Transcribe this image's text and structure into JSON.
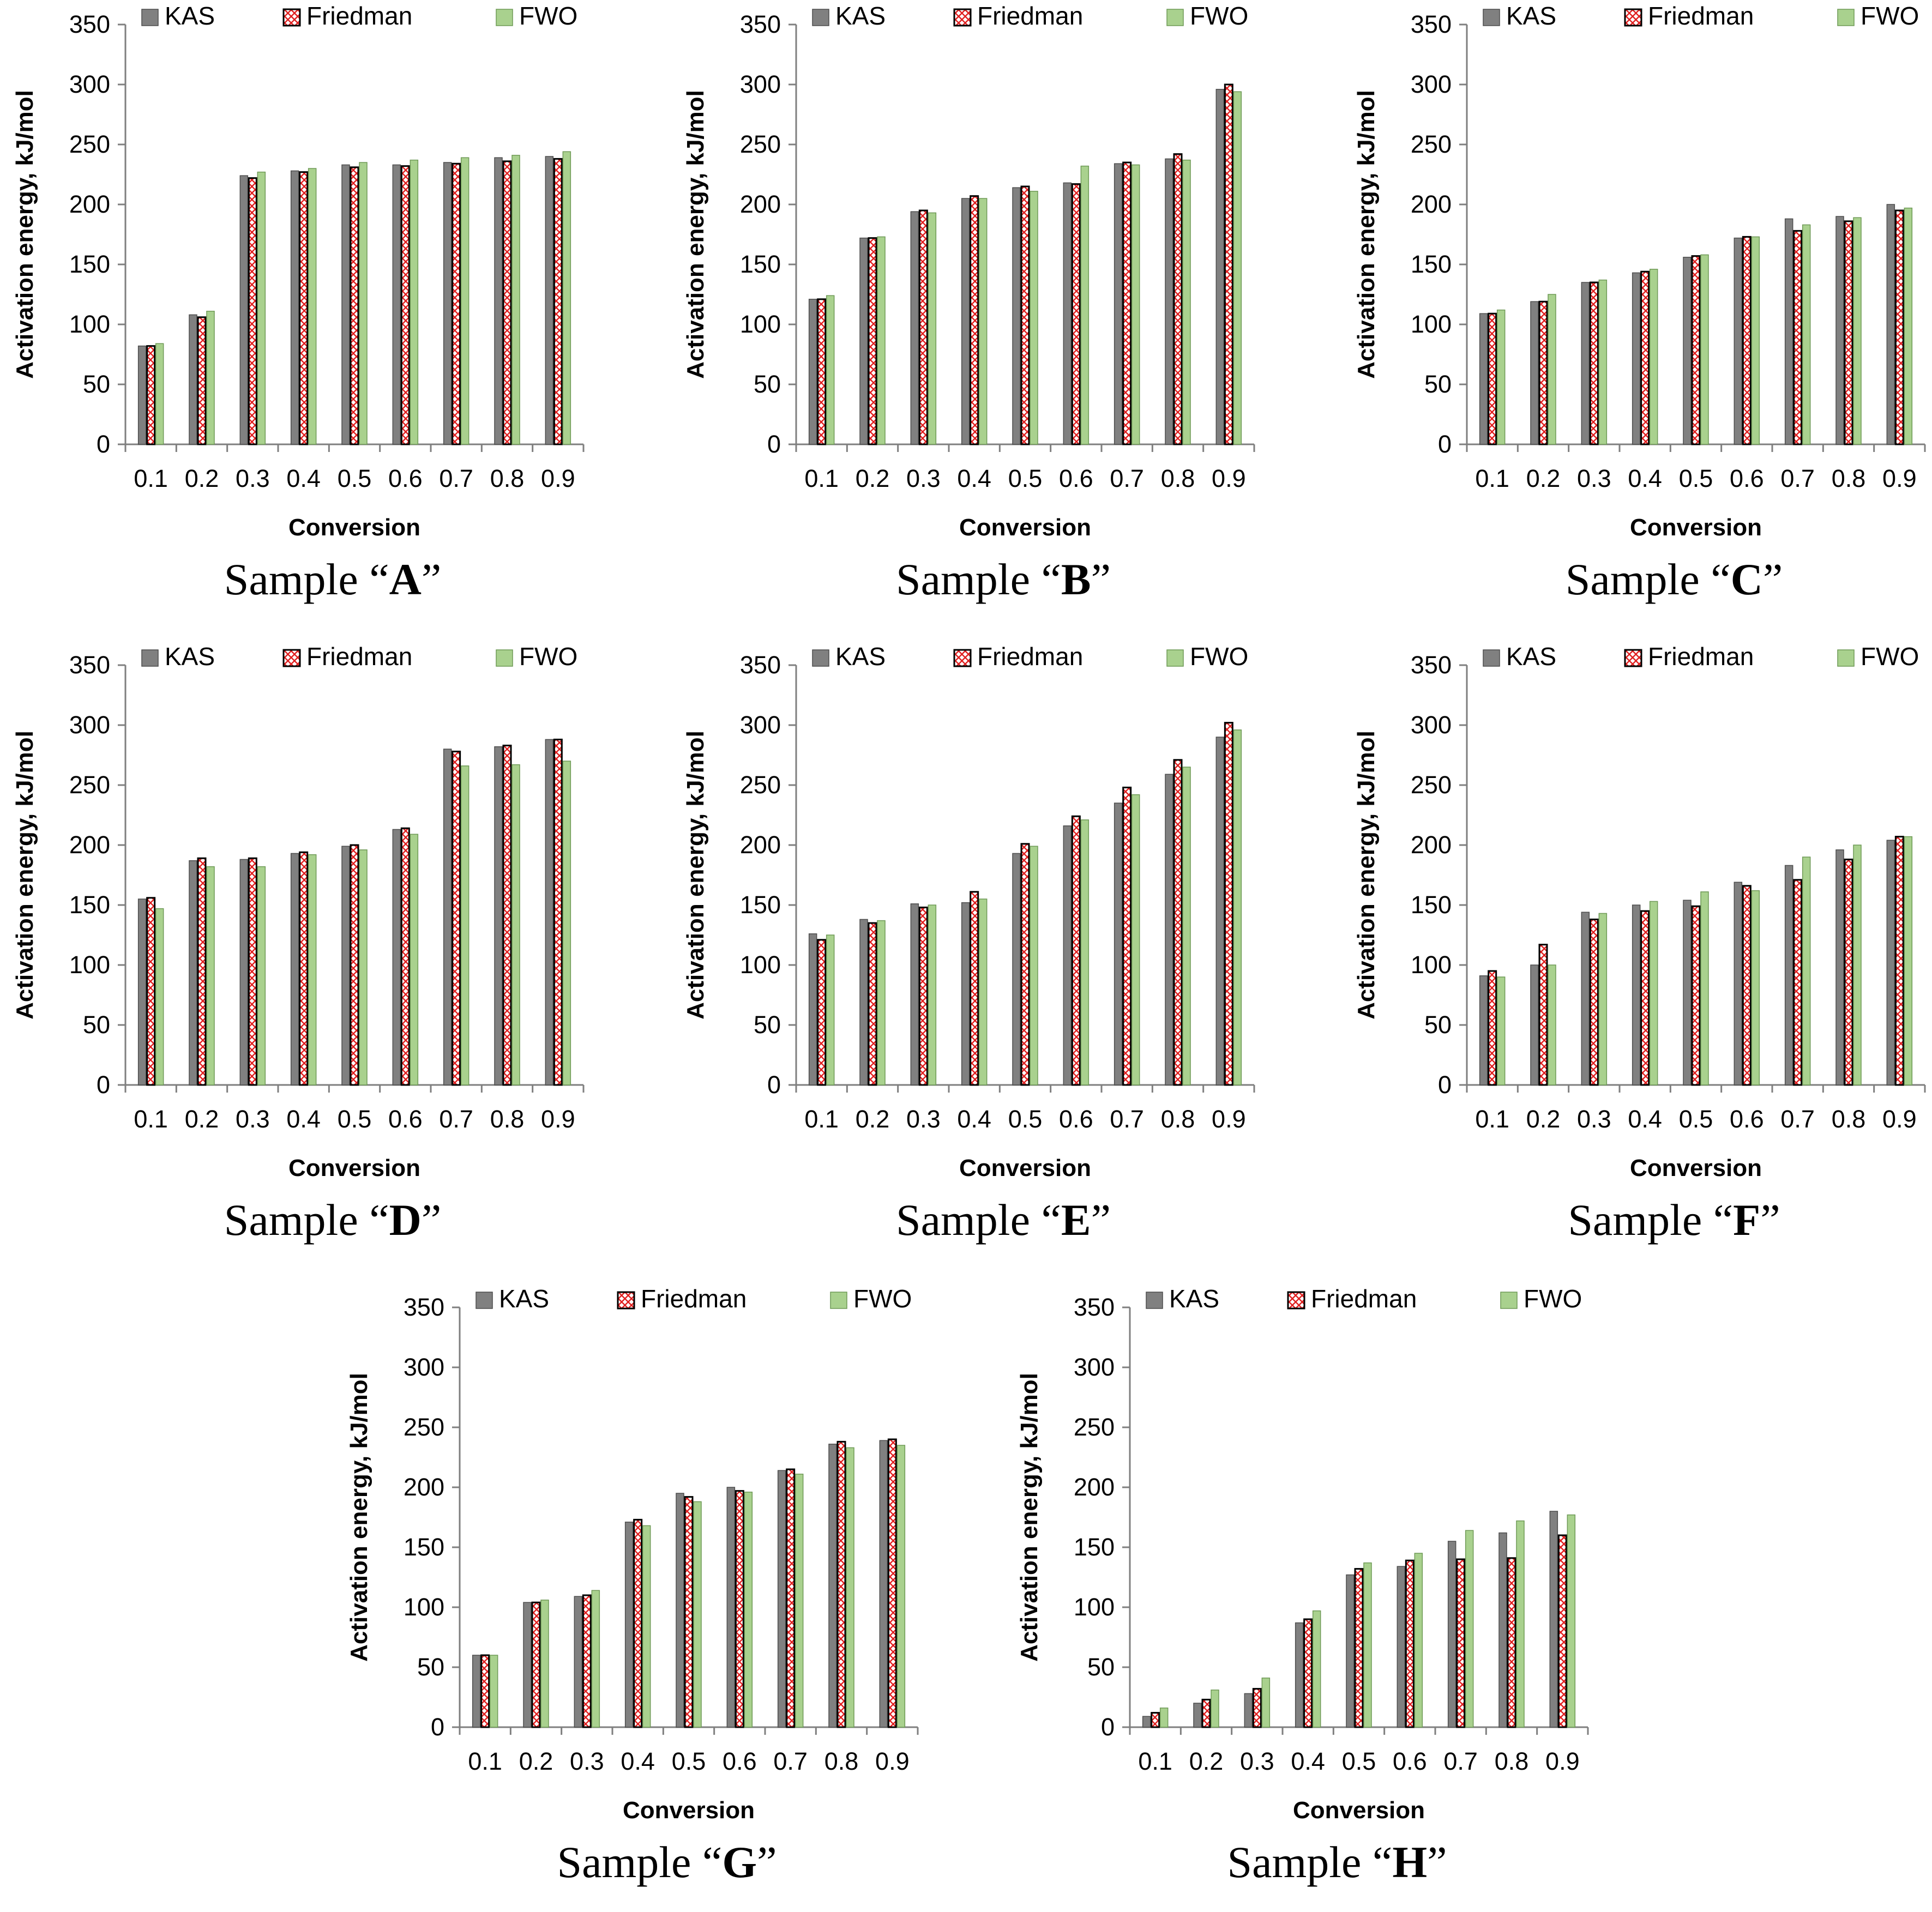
{
  "chart_data": [
    {
      "type": "bar",
      "title": "Sample “A”",
      "caption_prefix": "Sample “",
      "caption_letter": "A",
      "caption_suffix": "”",
      "categories": [
        "0.1",
        "0.2",
        "0.3",
        "0.4",
        "0.5",
        "0.6",
        "0.7",
        "0.8",
        "0.9"
      ],
      "series": [
        {
          "name": "KAS",
          "values": [
            82,
            108,
            224,
            228,
            233,
            233,
            235,
            239,
            240
          ]
        },
        {
          "name": "Friedman",
          "values": [
            82,
            106,
            222,
            227,
            231,
            232,
            234,
            236,
            238
          ]
        },
        {
          "name": "FWO",
          "values": [
            84,
            111,
            227,
            230,
            235,
            237,
            239,
            241,
            244
          ]
        }
      ],
      "xlabel": "Conversion",
      "ylabel": "Activation energy, kJ/mol",
      "ylim": [
        0,
        350
      ],
      "yticks": [
        "0",
        "50",
        "100",
        "150",
        "200",
        "250",
        "300",
        "350"
      ],
      "grid": false,
      "legend": "top"
    },
    {
      "type": "bar",
      "title": "Sample “B”",
      "caption_prefix": "Sample “",
      "caption_letter": "B",
      "caption_suffix": "”",
      "categories": [
        "0.1",
        "0.2",
        "0.3",
        "0.4",
        "0.5",
        "0.6",
        "0.7",
        "0.8",
        "0.9"
      ],
      "series": [
        {
          "name": "KAS",
          "values": [
            121,
            172,
            194,
            205,
            214,
            218,
            234,
            238,
            296
          ]
        },
        {
          "name": "Friedman",
          "values": [
            121,
            172,
            195,
            207,
            215,
            217,
            235,
            242,
            300
          ]
        },
        {
          "name": "FWO",
          "values": [
            124,
            173,
            193,
            205,
            211,
            232,
            233,
            237,
            294
          ]
        }
      ],
      "xlabel": "Conversion",
      "ylabel": "Activation energy, kJ/mol",
      "ylim": [
        0,
        350
      ],
      "yticks": [
        "0",
        "50",
        "100",
        "150",
        "200",
        "250",
        "300",
        "350"
      ],
      "grid": false,
      "legend": "top"
    },
    {
      "type": "bar",
      "title": "Sample “C”",
      "caption_prefix": "Sample “",
      "caption_letter": "C",
      "caption_suffix": "”",
      "categories": [
        "0.1",
        "0.2",
        "0.3",
        "0.4",
        "0.5",
        "0.6",
        "0.7",
        "0.8",
        "0.9"
      ],
      "series": [
        {
          "name": "KAS",
          "values": [
            109,
            119,
            135,
            143,
            156,
            172,
            188,
            190,
            200
          ]
        },
        {
          "name": "Friedman",
          "values": [
            109,
            119,
            135,
            144,
            157,
            173,
            178,
            186,
            195
          ]
        },
        {
          "name": "FWO",
          "values": [
            112,
            125,
            137,
            146,
            158,
            173,
            183,
            189,
            197
          ]
        }
      ],
      "xlabel": "Conversion",
      "ylabel": "Activation energy, kJ/mol",
      "ylim": [
        0,
        350
      ],
      "yticks": [
        "0",
        "50",
        "100",
        "150",
        "200",
        "250",
        "300",
        "350"
      ],
      "grid": false,
      "legend": "top"
    },
    {
      "type": "bar",
      "title": "Sample “D”",
      "caption_prefix": "Sample “",
      "caption_letter": "D",
      "caption_suffix": "”",
      "categories": [
        "0.1",
        "0.2",
        "0.3",
        "0.4",
        "0.5",
        "0.6",
        "0.7",
        "0.8",
        "0.9"
      ],
      "series": [
        {
          "name": "KAS",
          "values": [
            155,
            187,
            188,
            193,
            199,
            213,
            280,
            282,
            288
          ]
        },
        {
          "name": "Friedman",
          "values": [
            156,
            189,
            189,
            194,
            200,
            214,
            278,
            283,
            288
          ]
        },
        {
          "name": "FWO",
          "values": [
            147,
            182,
            182,
            192,
            196,
            209,
            266,
            267,
            270
          ]
        }
      ],
      "xlabel": "Conversion",
      "ylabel": "Activation energy, kJ/mol",
      "ylim": [
        0,
        350
      ],
      "yticks": [
        "0",
        "50",
        "100",
        "150",
        "200",
        "250",
        "300",
        "350"
      ],
      "grid": false,
      "legend": "top"
    },
    {
      "type": "bar",
      "title": "Sample “E”",
      "caption_prefix": "Sample “",
      "caption_letter": "E",
      "caption_suffix": "”",
      "categories": [
        "0.1",
        "0.2",
        "0.3",
        "0.4",
        "0.5",
        "0.6",
        "0.7",
        "0.8",
        "0.9"
      ],
      "series": [
        {
          "name": "KAS",
          "values": [
            126,
            138,
            151,
            152,
            193,
            216,
            235,
            259,
            290
          ]
        },
        {
          "name": "Friedman",
          "values": [
            121,
            135,
            148,
            161,
            201,
            224,
            248,
            271,
            302
          ]
        },
        {
          "name": "FWO",
          "values": [
            125,
            137,
            150,
            155,
            199,
            221,
            242,
            265,
            296
          ]
        }
      ],
      "xlabel": "Conversion",
      "ylabel": "Activation energy, kJ/mol",
      "ylim": [
        0,
        350
      ],
      "yticks": [
        "0",
        "50",
        "100",
        "150",
        "200",
        "250",
        "300",
        "350"
      ],
      "grid": false,
      "legend": "top"
    },
    {
      "type": "bar",
      "title": "Sample “F”",
      "caption_prefix": "Sample “",
      "caption_letter": "F",
      "caption_suffix": "”",
      "categories": [
        "0.1",
        "0.2",
        "0.3",
        "0.4",
        "0.5",
        "0.6",
        "0.7",
        "0.8",
        "0.9"
      ],
      "series": [
        {
          "name": "KAS",
          "values": [
            91,
            100,
            144,
            150,
            154,
            169,
            183,
            196,
            204
          ]
        },
        {
          "name": "Friedman",
          "values": [
            95,
            117,
            138,
            145,
            149,
            166,
            171,
            188,
            207
          ]
        },
        {
          "name": "FWO",
          "values": [
            90,
            100,
            143,
            153,
            161,
            162,
            190,
            200,
            207
          ]
        }
      ],
      "xlabel": "Conversion",
      "ylabel": "Activation energy, kJ/mol",
      "ylim": [
        0,
        350
      ],
      "yticks": [
        "0",
        "50",
        "100",
        "150",
        "200",
        "250",
        "300",
        "350"
      ],
      "grid": false,
      "legend": "top"
    },
    {
      "type": "bar",
      "title": "Sample “G”",
      "caption_prefix": "Sample “",
      "caption_letter": "G",
      "caption_suffix": "”",
      "categories": [
        "0.1",
        "0.2",
        "0.3",
        "0.4",
        "0.5",
        "0.6",
        "0.7",
        "0.8",
        "0.9"
      ],
      "series": [
        {
          "name": "KAS",
          "values": [
            60,
            104,
            109,
            171,
            195,
            200,
            214,
            236,
            239
          ]
        },
        {
          "name": "Friedman",
          "values": [
            60,
            104,
            110,
            173,
            192,
            197,
            215,
            238,
            240
          ]
        },
        {
          "name": "FWO",
          "values": [
            60,
            106,
            114,
            168,
            188,
            196,
            211,
            233,
            235
          ]
        }
      ],
      "xlabel": "Conversion",
      "ylabel": "Activation energy, kJ/mol",
      "ylim": [
        0,
        350
      ],
      "yticks": [
        "0",
        "50",
        "100",
        "150",
        "200",
        "250",
        "300",
        "350"
      ],
      "grid": false,
      "legend": "top"
    },
    {
      "type": "bar",
      "title": "Sample “H”",
      "caption_prefix": "Sample “",
      "caption_letter": "H",
      "caption_suffix": "”",
      "categories": [
        "0.1",
        "0.2",
        "0.3",
        "0.4",
        "0.5",
        "0.6",
        "0.7",
        "0.8",
        "0.9"
      ],
      "series": [
        {
          "name": "KAS",
          "values": [
            9,
            20,
            28,
            87,
            127,
            134,
            155,
            162,
            180
          ]
        },
        {
          "name": "Friedman",
          "values": [
            12,
            23,
            32,
            90,
            132,
            139,
            140,
            141,
            160
          ]
        },
        {
          "name": "FWO",
          "values": [
            16,
            31,
            41,
            97,
            137,
            145,
            164,
            172,
            177
          ]
        }
      ],
      "xlabel": "Conversion",
      "ylabel": "Activation energy, kJ/mol",
      "ylim": [
        0,
        350
      ],
      "yticks": [
        "0",
        "50",
        "100",
        "150",
        "200",
        "250",
        "300",
        "350"
      ],
      "grid": false,
      "legend": "top"
    }
  ],
  "style": {
    "kas_color": "#808080",
    "kas_edge": "#4d4d4d",
    "friedman_fill": "#ffffff",
    "friedman_hatch": "#e02020",
    "friedman_edge": "#000000",
    "fwo_color": "#a9d18e",
    "fwo_edge": "#6f9a57",
    "axis_color": "#7f7f7f"
  }
}
